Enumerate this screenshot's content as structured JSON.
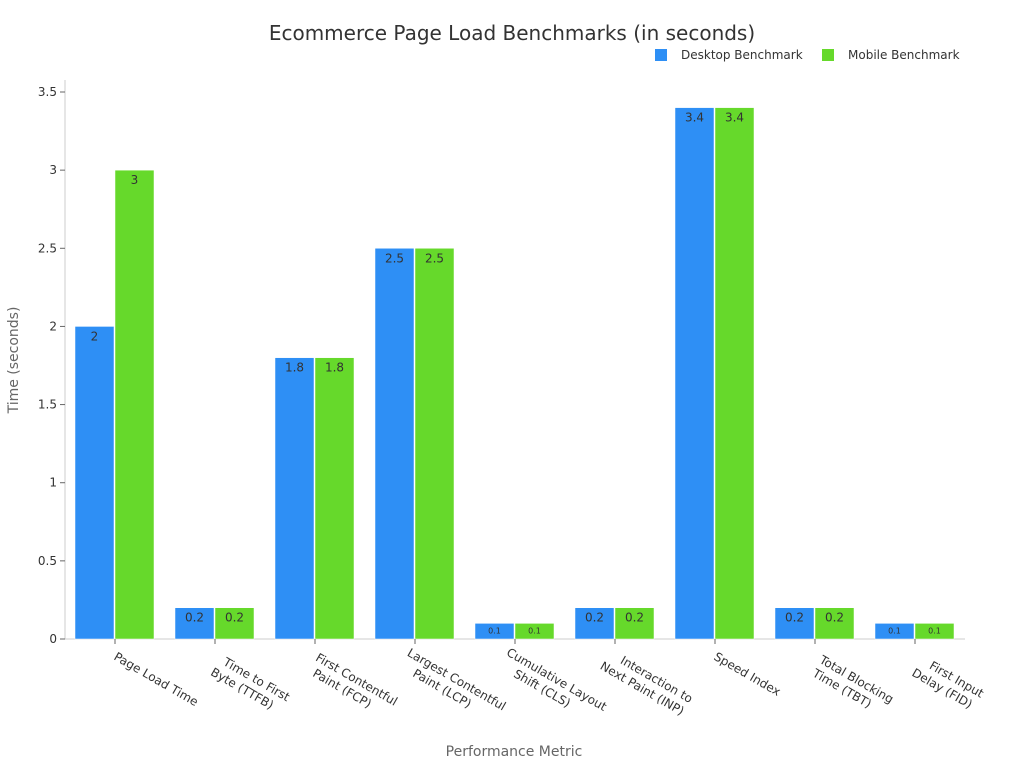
{
  "chart_data": {
    "type": "bar",
    "title": "Ecommerce Page Load Benchmarks (in seconds)",
    "xlabel": "Performance Metric",
    "ylabel": "Time (seconds)",
    "ylim": [
      0,
      3.5
    ],
    "yticks": [
      "0",
      "0.5",
      "1",
      "1.5",
      "2",
      "2.5",
      "3",
      "3.5"
    ],
    "ytick_values": [
      0,
      0.5,
      1,
      1.5,
      2,
      2.5,
      3,
      3.5
    ],
    "grid": false,
    "legend_position": "top-right",
    "categories": [
      [
        "Page Load Time"
      ],
      [
        "Time to First",
        "Byte (TTFB)"
      ],
      [
        "First Contentful",
        "Paint (FCP)"
      ],
      [
        "Largest Contentful",
        "Paint (LCP)"
      ],
      [
        "Cumulative Layout",
        "Shift (CLS)"
      ],
      [
        "Interaction to",
        "Next Paint (INP)"
      ],
      [
        "Speed Index"
      ],
      [
        "Total Blocking",
        "Time (TBT)"
      ],
      [
        "First Input",
        "Delay (FID)"
      ]
    ],
    "series": [
      {
        "name": "Desktop Benchmark",
        "color": "#2e8ff5",
        "values": [
          2,
          0.2,
          1.8,
          2.5,
          0.1,
          0.2,
          3.4,
          0.2,
          0.1
        ],
        "labels": [
          "2",
          "0.2",
          "1.8",
          "2.5",
          "0.1",
          "0.2",
          "3.4",
          "0.2",
          "0.1"
        ]
      },
      {
        "name": "Mobile Benchmark",
        "color": "#66d92b",
        "values": [
          3,
          0.2,
          1.8,
          2.5,
          0.1,
          0.2,
          3.4,
          0.2,
          0.1
        ],
        "labels": [
          "3",
          "0.2",
          "1.8",
          "2.5",
          "0.1",
          "0.2",
          "3.4",
          "0.2",
          "0.1"
        ]
      }
    ]
  }
}
